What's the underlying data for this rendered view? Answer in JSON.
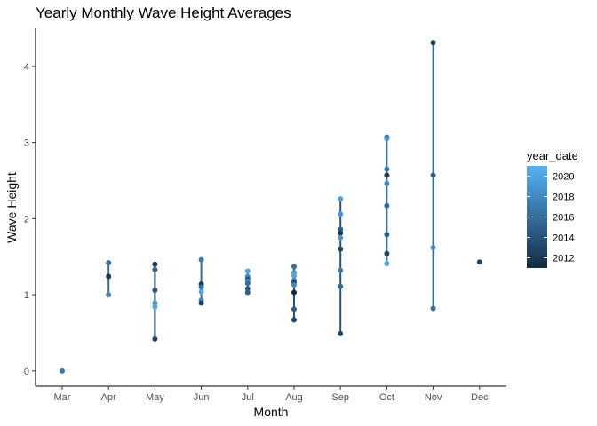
{
  "chart_data": {
    "type": "scatter",
    "title": "Yearly Monthly Wave Height Averages",
    "xlabel": "Month",
    "ylabel": "Wave Height",
    "categories": [
      "Mar",
      "Apr",
      "May",
      "Jun",
      "Jul",
      "Aug",
      "Sep",
      "Oct",
      "Nov",
      "Dec"
    ],
    "ylim": [
      -0.2,
      4.5
    ],
    "y_ticks": [
      0,
      1,
      2,
      3,
      4
    ],
    "grid": false,
    "legend": {
      "title": "year_date",
      "position": "right",
      "type": "colorbar",
      "range": [
        2011,
        2021
      ],
      "ticks": [
        2012,
        2014,
        2016,
        2018,
        2020
      ],
      "low_color": "#132b43",
      "high_color": "#56b1f7"
    },
    "ranges": [
      {
        "category": "Apr",
        "ymin": 1.0,
        "ymax": 1.42,
        "year": 2016
      },
      {
        "category": "May",
        "ymin": 0.42,
        "ymax": 1.4,
        "year": 2013
      },
      {
        "category": "Jun",
        "ymin": 0.89,
        "ymax": 1.46,
        "year": 2016
      },
      {
        "category": "Jul",
        "ymin": 1.03,
        "ymax": 1.31,
        "year": 2016
      },
      {
        "category": "Aug",
        "ymin": 0.67,
        "ymax": 1.37,
        "year": 2014
      },
      {
        "category": "Sep",
        "ymin": 0.49,
        "ymax": 2.26,
        "year": 2014
      },
      {
        "category": "Oct",
        "ymin": 1.41,
        "ymax": 3.07,
        "year": 2017
      },
      {
        "category": "Nov",
        "ymin": 0.82,
        "ymax": 4.31,
        "year": 2016
      }
    ],
    "points": [
      {
        "category": "Mar",
        "y": 0.0,
        "year": 2017
      },
      {
        "category": "Apr",
        "y": 1.42,
        "year": 2016
      },
      {
        "category": "Apr",
        "y": 1.24,
        "year": 2012
      },
      {
        "category": "Apr",
        "y": 1.0,
        "year": 2018
      },
      {
        "category": "May",
        "y": 1.4,
        "year": 2012
      },
      {
        "category": "May",
        "y": 1.33,
        "year": 2015
      },
      {
        "category": "May",
        "y": 1.06,
        "year": 2014
      },
      {
        "category": "May",
        "y": 0.89,
        "year": 2019
      },
      {
        "category": "May",
        "y": 0.84,
        "year": 2020
      },
      {
        "category": "May",
        "y": 0.42,
        "year": 2013
      },
      {
        "category": "Jun",
        "y": 1.46,
        "year": 2017
      },
      {
        "category": "Jun",
        "y": 1.14,
        "year": 2012
      },
      {
        "category": "Jun",
        "y": 1.1,
        "year": 2016
      },
      {
        "category": "Jun",
        "y": 1.04,
        "year": 2020
      },
      {
        "category": "Jun",
        "y": 0.93,
        "year": 2018
      },
      {
        "category": "Jun",
        "y": 0.89,
        "year": 2013
      },
      {
        "category": "Jul",
        "y": 1.31,
        "year": 2020
      },
      {
        "category": "Jul",
        "y": 1.24,
        "year": 2018
      },
      {
        "category": "Jul",
        "y": 1.2,
        "year": 2012
      },
      {
        "category": "Jul",
        "y": 1.18,
        "year": 2019
      },
      {
        "category": "Jul",
        "y": 1.15,
        "year": 2016
      },
      {
        "category": "Jul",
        "y": 1.08,
        "year": 2014
      },
      {
        "category": "Jul",
        "y": 1.03,
        "year": 2015
      },
      {
        "category": "Aug",
        "y": 1.37,
        "year": 2016
      },
      {
        "category": "Aug",
        "y": 1.29,
        "year": 2019
      },
      {
        "category": "Aug",
        "y": 1.25,
        "year": 2020
      },
      {
        "category": "Aug",
        "y": 1.19,
        "year": 2017
      },
      {
        "category": "Aug",
        "y": 1.16,
        "year": 2013
      },
      {
        "category": "Aug",
        "y": 1.13,
        "year": 2018
      },
      {
        "category": "Aug",
        "y": 1.03,
        "year": 2011
      },
      {
        "category": "Aug",
        "y": 0.81,
        "year": 2015
      },
      {
        "category": "Aug",
        "y": 0.67,
        "year": 2013
      },
      {
        "category": "Sep",
        "y": 2.26,
        "year": 2020
      },
      {
        "category": "Sep",
        "y": 2.06,
        "year": 2019
      },
      {
        "category": "Sep",
        "y": 1.86,
        "year": 2015
      },
      {
        "category": "Sep",
        "y": 1.81,
        "year": 2012
      },
      {
        "category": "Sep",
        "y": 1.75,
        "year": 2019
      },
      {
        "category": "Sep",
        "y": 1.6,
        "year": 2013
      },
      {
        "category": "Sep",
        "y": 1.32,
        "year": 2017
      },
      {
        "category": "Sep",
        "y": 1.11,
        "year": 2016
      },
      {
        "category": "Sep",
        "y": 0.49,
        "year": 2013
      },
      {
        "category": "Oct",
        "y": 3.07,
        "year": 2016
      },
      {
        "category": "Oct",
        "y": 3.05,
        "year": 2019
      },
      {
        "category": "Oct",
        "y": 2.65,
        "year": 2017
      },
      {
        "category": "Oct",
        "y": 2.57,
        "year": 2012
      },
      {
        "category": "Oct",
        "y": 2.46,
        "year": 2018
      },
      {
        "category": "Oct",
        "y": 2.17,
        "year": 2016
      },
      {
        "category": "Oct",
        "y": 1.79,
        "year": 2015
      },
      {
        "category": "Oct",
        "y": 1.54,
        "year": 2013
      },
      {
        "category": "Oct",
        "y": 1.41,
        "year": 2020
      },
      {
        "category": "Nov",
        "y": 4.31,
        "year": 2012
      },
      {
        "category": "Nov",
        "y": 2.57,
        "year": 2015
      },
      {
        "category": "Nov",
        "y": 1.62,
        "year": 2018
      },
      {
        "category": "Nov",
        "y": 0.82,
        "year": 2016
      },
      {
        "category": "Dec",
        "y": 1.43,
        "year": 2013
      }
    ]
  }
}
